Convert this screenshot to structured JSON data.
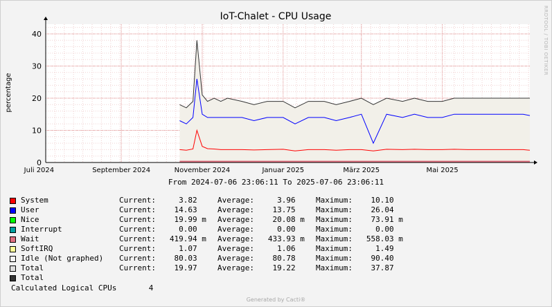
{
  "chart_data": {
    "type": "line",
    "title": "IoT-Chalet - CPU Usage",
    "ylabel": "percentage",
    "ylim": [
      0,
      43
    ],
    "yticks": [
      0,
      10,
      20,
      30,
      40
    ],
    "xlim": [
      "2024-07-06",
      "2025-07-06"
    ],
    "xticks": [
      {
        "date": "2024-07-01",
        "label": "Juli 2024"
      },
      {
        "date": "2024-09-01",
        "label": "September 2024"
      },
      {
        "date": "2024-11-01",
        "label": "November 2024"
      },
      {
        "date": "2025-01-01",
        "label": "Januar 2025"
      },
      {
        "date": "2025-03-01",
        "label": "März 2025"
      },
      {
        "date": "2025-05-01",
        "label": "Mai 2025"
      }
    ],
    "grid": true,
    "data_start": "2024-10-15",
    "series": [
      {
        "name": "Total",
        "color": "#333333",
        "x": [
          "2024-10-15",
          "2024-10-20",
          "2024-10-25",
          "2024-10-28",
          "2024-11-01",
          "2024-11-05",
          "2024-11-10",
          "2024-11-15",
          "2024-11-20",
          "2024-12-01",
          "2024-12-10",
          "2024-12-20",
          "2025-01-01",
          "2025-01-10",
          "2025-01-20",
          "2025-02-01",
          "2025-02-10",
          "2025-02-20",
          "2025-03-01",
          "2025-03-10",
          "2025-03-20",
          "2025-04-01",
          "2025-04-10",
          "2025-04-20",
          "2025-05-01",
          "2025-05-10",
          "2025-05-20",
          "2025-06-01",
          "2025-06-10",
          "2025-06-20",
          "2025-07-01",
          "2025-07-06"
        ],
        "values": [
          18,
          17,
          19,
          38,
          21,
          19,
          20,
          19,
          20,
          19,
          18,
          19,
          19,
          17,
          19,
          19,
          18,
          19,
          20,
          18,
          20,
          19,
          20,
          19,
          19,
          20,
          20,
          20,
          20,
          20,
          20,
          20
        ]
      },
      {
        "name": "User",
        "color": "#0000ff",
        "x": [
          "2024-10-15",
          "2024-10-20",
          "2024-10-25",
          "2024-10-28",
          "2024-11-01",
          "2024-11-05",
          "2024-11-10",
          "2024-11-15",
          "2024-11-20",
          "2024-12-01",
          "2024-12-10",
          "2024-12-20",
          "2025-01-01",
          "2025-01-10",
          "2025-01-20",
          "2025-02-01",
          "2025-02-10",
          "2025-02-20",
          "2025-03-01",
          "2025-03-10",
          "2025-03-20",
          "2025-04-01",
          "2025-04-10",
          "2025-04-20",
          "2025-05-01",
          "2025-05-10",
          "2025-05-20",
          "2025-06-01",
          "2025-06-10",
          "2025-06-20",
          "2025-07-01",
          "2025-07-06"
        ],
        "values": [
          13,
          12,
          14,
          26,
          15,
          14,
          14,
          14,
          14,
          14,
          13,
          14,
          14,
          12,
          14,
          14,
          13,
          14,
          15,
          6,
          15,
          14,
          15,
          14,
          14,
          15,
          15,
          15,
          15,
          15,
          15,
          14.6
        ]
      },
      {
        "name": "System",
        "color": "#ff0000",
        "x": [
          "2024-10-15",
          "2024-10-20",
          "2024-10-25",
          "2024-10-28",
          "2024-11-01",
          "2024-11-05",
          "2024-11-10",
          "2024-11-15",
          "2024-11-20",
          "2024-12-01",
          "2024-12-10",
          "2024-12-20",
          "2025-01-01",
          "2025-01-10",
          "2025-01-20",
          "2025-02-01",
          "2025-02-10",
          "2025-02-20",
          "2025-03-01",
          "2025-03-10",
          "2025-03-20",
          "2025-04-01",
          "2025-04-10",
          "2025-04-20",
          "2025-05-01",
          "2025-05-10",
          "2025-05-20",
          "2025-06-01",
          "2025-06-10",
          "2025-06-20",
          "2025-07-01",
          "2025-07-06"
        ],
        "values": [
          4,
          3.8,
          4.2,
          10,
          5,
          4.3,
          4.2,
          4,
          4,
          4,
          3.9,
          4,
          4.1,
          3.6,
          4,
          4,
          3.8,
          4,
          4,
          3.6,
          4.1,
          4,
          4.1,
          4,
          4,
          4.1,
          4,
          4,
          4,
          4,
          4,
          3.8
        ]
      }
    ]
  },
  "header": {
    "range_text": "From 2024-07-06 23:06:11 To 2025-07-06 23:06:11",
    "watermark": "RRDTOOL / TOBI OETIKER",
    "footer": "Generated by Cacti®"
  },
  "legend": [
    {
      "name": "System",
      "color": "#ff0000",
      "current": "Current:     3.82",
      "average": "Average:     3.96",
      "maximum": "Maximum:    10.10"
    },
    {
      "name": "User",
      "color": "#0000ff",
      "current": "Current:    14.63",
      "average": "Average:    13.75",
      "maximum": "Maximum:    26.04"
    },
    {
      "name": "Nice",
      "color": "#00ff00",
      "current": "Current:    19.99 m",
      "average": "Average:    20.08 m",
      "maximum": "Maximum:    73.91 m"
    },
    {
      "name": "Interrupt",
      "color": "#00a0a0",
      "current": "Current:     0.00",
      "average": "Average:     0.00",
      "maximum": "Maximum:     0.00"
    },
    {
      "name": "Wait",
      "color": "#e07080",
      "current": "Current:   419.94 m",
      "average": "Average:   433.93 m",
      "maximum": "Maximum:   558.03 m"
    },
    {
      "name": "SoftIRQ",
      "color": "#ffff99",
      "current": "Current:     1.07",
      "average": "Average:     1.06",
      "maximum": "Maximum:     1.49"
    },
    {
      "name": "Idle (Not graphed)",
      "color": "#f2f2f2",
      "current": "Current:    80.03",
      "average": "Average:    80.78",
      "maximum": "Maximum:    90.40"
    },
    {
      "name": "Total",
      "color": "#dddddd",
      "current": "Current:    19.97",
      "average": "Average:    19.22",
      "maximum": "Maximum:    37.87"
    },
    {
      "name": "Total",
      "color": "#333333",
      "current": "",
      "average": "",
      "maximum": ""
    }
  ],
  "calc": {
    "label": "Calculated Logical CPUs",
    "value": "4"
  }
}
